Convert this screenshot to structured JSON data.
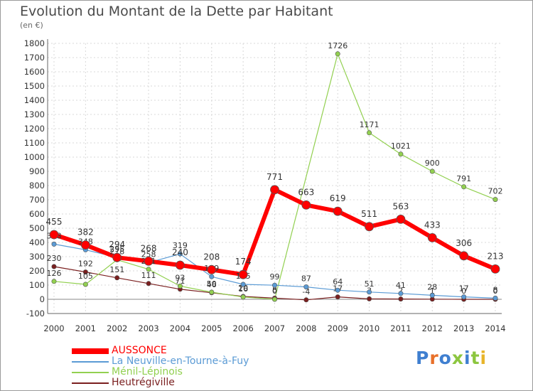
{
  "title": "Evolution du Montant de la Dette par Habitant",
  "subtitle": "(en €)",
  "logo": "Proxiti",
  "chart_data": {
    "type": "line",
    "title": "Evolution du Montant de la Dette par Habitant",
    "ylabel": "(en €)",
    "xlabel": "",
    "x": [
      "2000",
      "2001",
      "2002",
      "2003",
      "2004",
      "2005",
      "2006",
      "2007",
      "2008",
      "2009",
      "2010",
      "2011",
      "2012",
      "2013",
      "2014"
    ],
    "yticks": [
      "-100",
      "0",
      "100",
      "200",
      "300",
      "400",
      "500",
      "600",
      "700",
      "800",
      "900",
      "1000",
      "1100",
      "1200",
      "1300",
      "1400",
      "1500",
      "1600",
      "1700",
      "1800"
    ],
    "ylim": [
      -100,
      1800
    ],
    "grid": true,
    "legend_position": "bottom-left",
    "series": [
      {
        "name": "Heutrégiville",
        "color": "#7a1f1f",
        "values": [
          230,
          192,
          151,
          111,
          71,
          46,
          20,
          8,
          -4,
          17,
          3,
          2,
          1,
          0,
          0
        ],
        "labels": [
          "230",
          "192",
          "151",
          "111",
          "71",
          "46",
          "20",
          "8",
          "-4",
          "17",
          "3",
          "2",
          "1",
          "0",
          "0"
        ]
      },
      {
        "name": "Ménil-Lépinois",
        "color": "#92d050",
        "values": [
          126,
          105,
          278,
          211,
          93,
          50,
          16,
          0,
          null,
          1726,
          1171,
          1021,
          900,
          791,
          702
        ],
        "labels": [
          "126",
          "105",
          "278",
          "211",
          "93",
          "50",
          "16",
          "0",
          "",
          "1726",
          "1171",
          "1021",
          "900",
          "791",
          "702"
        ]
      },
      {
        "name": "La Neuville-en-Tourne-à-Fuy",
        "color": "#5b9bd5",
        "values": [
          388,
          348,
          295,
          258,
          319,
          159,
          105,
          99,
          87,
          64,
          51,
          41,
          28,
          17,
          8
        ],
        "labels": [
          "388",
          "348",
          "295",
          "258",
          "319",
          "159",
          "105",
          "99",
          "87",
          "64",
          "51",
          "41",
          "28",
          "17",
          "8"
        ]
      },
      {
        "name": "AUSSONCE",
        "color": "#ff0000",
        "values": [
          455,
          382,
          294,
          268,
          240,
          208,
          174,
          771,
          663,
          619,
          511,
          563,
          433,
          306,
          213
        ],
        "labels": [
          "455",
          "382",
          "294",
          "268",
          "240",
          "208",
          "174",
          "771",
          "663",
          "619",
          "511",
          "563",
          "433",
          "306",
          "213"
        ]
      }
    ]
  }
}
